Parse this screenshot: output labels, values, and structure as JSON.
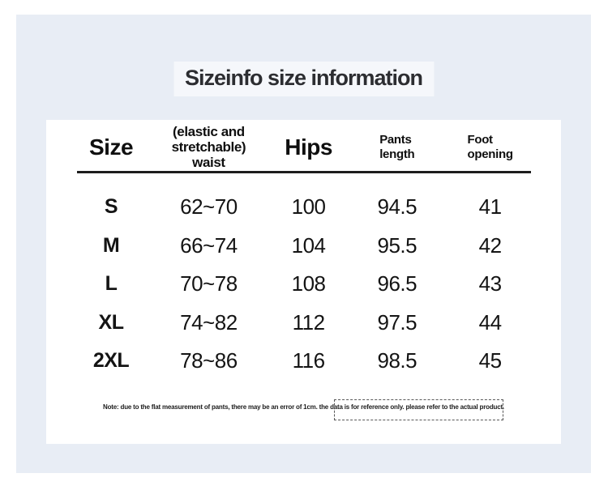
{
  "title": "Sizeinfo size information",
  "header": {
    "size": "Size",
    "waist_lines": [
      "(elastic and",
      "stretchable)",
      "waist"
    ],
    "hips": "Hips",
    "pants_lines": [
      "Pants",
      "length"
    ],
    "foot_lines": [
      "Foot",
      "opening"
    ]
  },
  "rows": [
    [
      "S",
      "62~70",
      "100",
      "94.5",
      "41"
    ],
    [
      "M",
      "66~74",
      "104",
      "95.5",
      "42"
    ],
    [
      "L",
      "70~78",
      "108",
      "96.5",
      "43"
    ],
    [
      "XL",
      "74~82",
      "112",
      "97.5",
      "44"
    ],
    [
      "2XL",
      "78~86",
      "116",
      "98.5",
      "45"
    ]
  ],
  "note": "Note: due to the flat measurement of pants, there may be an error of 1cm. the data is for reference only. please refer to the actual product.",
  "colors": {
    "panel_background": "#e8edf5",
    "card_background": "#ffffff",
    "text": "#141414",
    "header_divider": "#1d1d1d"
  },
  "chart_data": {
    "type": "table",
    "title": "Sizeinfo size information",
    "columns": [
      "Size",
      "(elastic and stretchable) waist",
      "Hips",
      "Pants length",
      "Foot opening"
    ],
    "rows": [
      [
        "S",
        "62~70",
        100,
        94.5,
        41
      ],
      [
        "M",
        "66~74",
        104,
        95.5,
        42
      ],
      [
        "L",
        "70~78",
        108,
        96.5,
        43
      ],
      [
        "XL",
        "74~82",
        112,
        97.5,
        44
      ],
      [
        "2XL",
        "78~86",
        116,
        98.5,
        45
      ]
    ],
    "note": "Note: due to the flat measurement of pants, there may be an error of 1cm. the data is for reference only. please refer to the actual product."
  }
}
